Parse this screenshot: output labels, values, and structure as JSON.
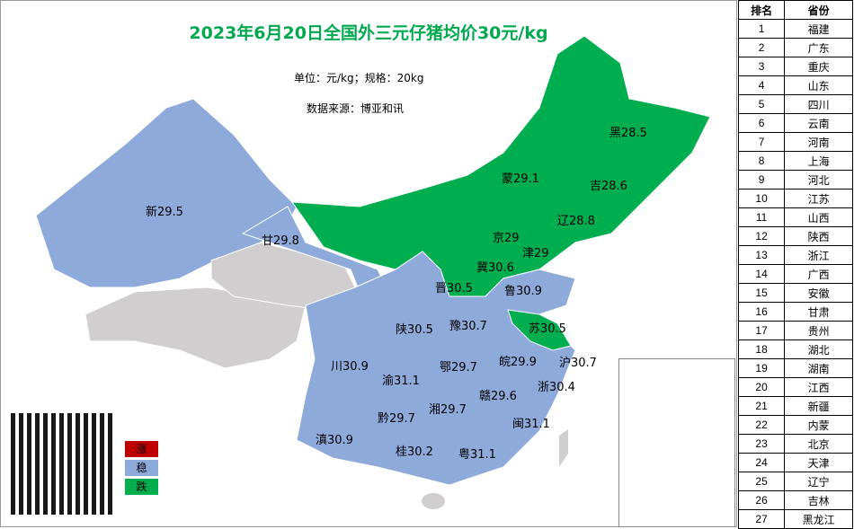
{
  "title": "2023年6月20日全国外三元仔猪均价30元/kg",
  "unit": "单位：元/kg；规格：20kg",
  "source": "数据来源：博亚和讯",
  "colors": {
    "up": "#c00000",
    "stable": "#8eaadb",
    "down": "#00ad4f",
    "nodata": "#d0cece"
  },
  "legend": [
    {
      "label": "涨",
      "color": "#c00000"
    },
    {
      "label": "稳",
      "color": "#8eaadb"
    },
    {
      "label": "跌",
      "color": "#00ad4f"
    }
  ],
  "logo_text": "博亚和讯",
  "labels": [
    {
      "text": "新29.5",
      "status": "stable"
    },
    {
      "text": "甘29.8",
      "status": "stable"
    },
    {
      "text": "蒙29.1",
      "status": "down"
    },
    {
      "text": "黑28.5",
      "status": "down"
    },
    {
      "text": "吉28.6",
      "status": "down"
    },
    {
      "text": "辽28.8",
      "status": "down"
    },
    {
      "text": "京29",
      "status": "down"
    },
    {
      "text": "津29",
      "status": "down"
    },
    {
      "text": "冀30.6",
      "status": "down"
    },
    {
      "text": "晋30.5",
      "status": "down"
    },
    {
      "text": "鲁30.9",
      "status": "stable"
    },
    {
      "text": "苏30.5",
      "status": "down"
    },
    {
      "text": "陕30.5",
      "status": "stable"
    },
    {
      "text": "豫30.7",
      "status": "stable"
    },
    {
      "text": "皖29.9",
      "status": "stable"
    },
    {
      "text": "沪30.7",
      "status": "stable"
    },
    {
      "text": "川30.9",
      "status": "stable"
    },
    {
      "text": "渝31.1",
      "status": "stable"
    },
    {
      "text": "鄂29.7",
      "status": "stable"
    },
    {
      "text": "浙30.4",
      "status": "stable"
    },
    {
      "text": "黔29.7",
      "status": "stable"
    },
    {
      "text": "湘29.7",
      "status": "stable"
    },
    {
      "text": "赣29.6",
      "status": "stable"
    },
    {
      "text": "闽31.1",
      "status": "stable"
    },
    {
      "text": "滇30.9",
      "status": "stable"
    },
    {
      "text": "桂30.2",
      "status": "stable"
    },
    {
      "text": "粤31.1",
      "status": "stable"
    }
  ],
  "table": {
    "headers": [
      "排名",
      "省份"
    ],
    "rows": [
      [
        "1",
        "福建"
      ],
      [
        "2",
        "广东"
      ],
      [
        "3",
        "重庆"
      ],
      [
        "4",
        "山东"
      ],
      [
        "5",
        "四川"
      ],
      [
        "6",
        "云南"
      ],
      [
        "7",
        "河南"
      ],
      [
        "8",
        "上海"
      ],
      [
        "9",
        "河北"
      ],
      [
        "10",
        "江苏"
      ],
      [
        "11",
        "山西"
      ],
      [
        "12",
        "陕西"
      ],
      [
        "13",
        "浙江"
      ],
      [
        "14",
        "广西"
      ],
      [
        "15",
        "安徽"
      ],
      [
        "16",
        "甘肃"
      ],
      [
        "17",
        "贵州"
      ],
      [
        "18",
        "湖北"
      ],
      [
        "19",
        "湖南"
      ],
      [
        "20",
        "江西"
      ],
      [
        "21",
        "新疆"
      ],
      [
        "22",
        "内蒙"
      ],
      [
        "23",
        "北京"
      ],
      [
        "24",
        "天津"
      ],
      [
        "25",
        "辽宁"
      ],
      [
        "26",
        "吉林"
      ],
      [
        "27",
        "黑龙江"
      ]
    ]
  }
}
